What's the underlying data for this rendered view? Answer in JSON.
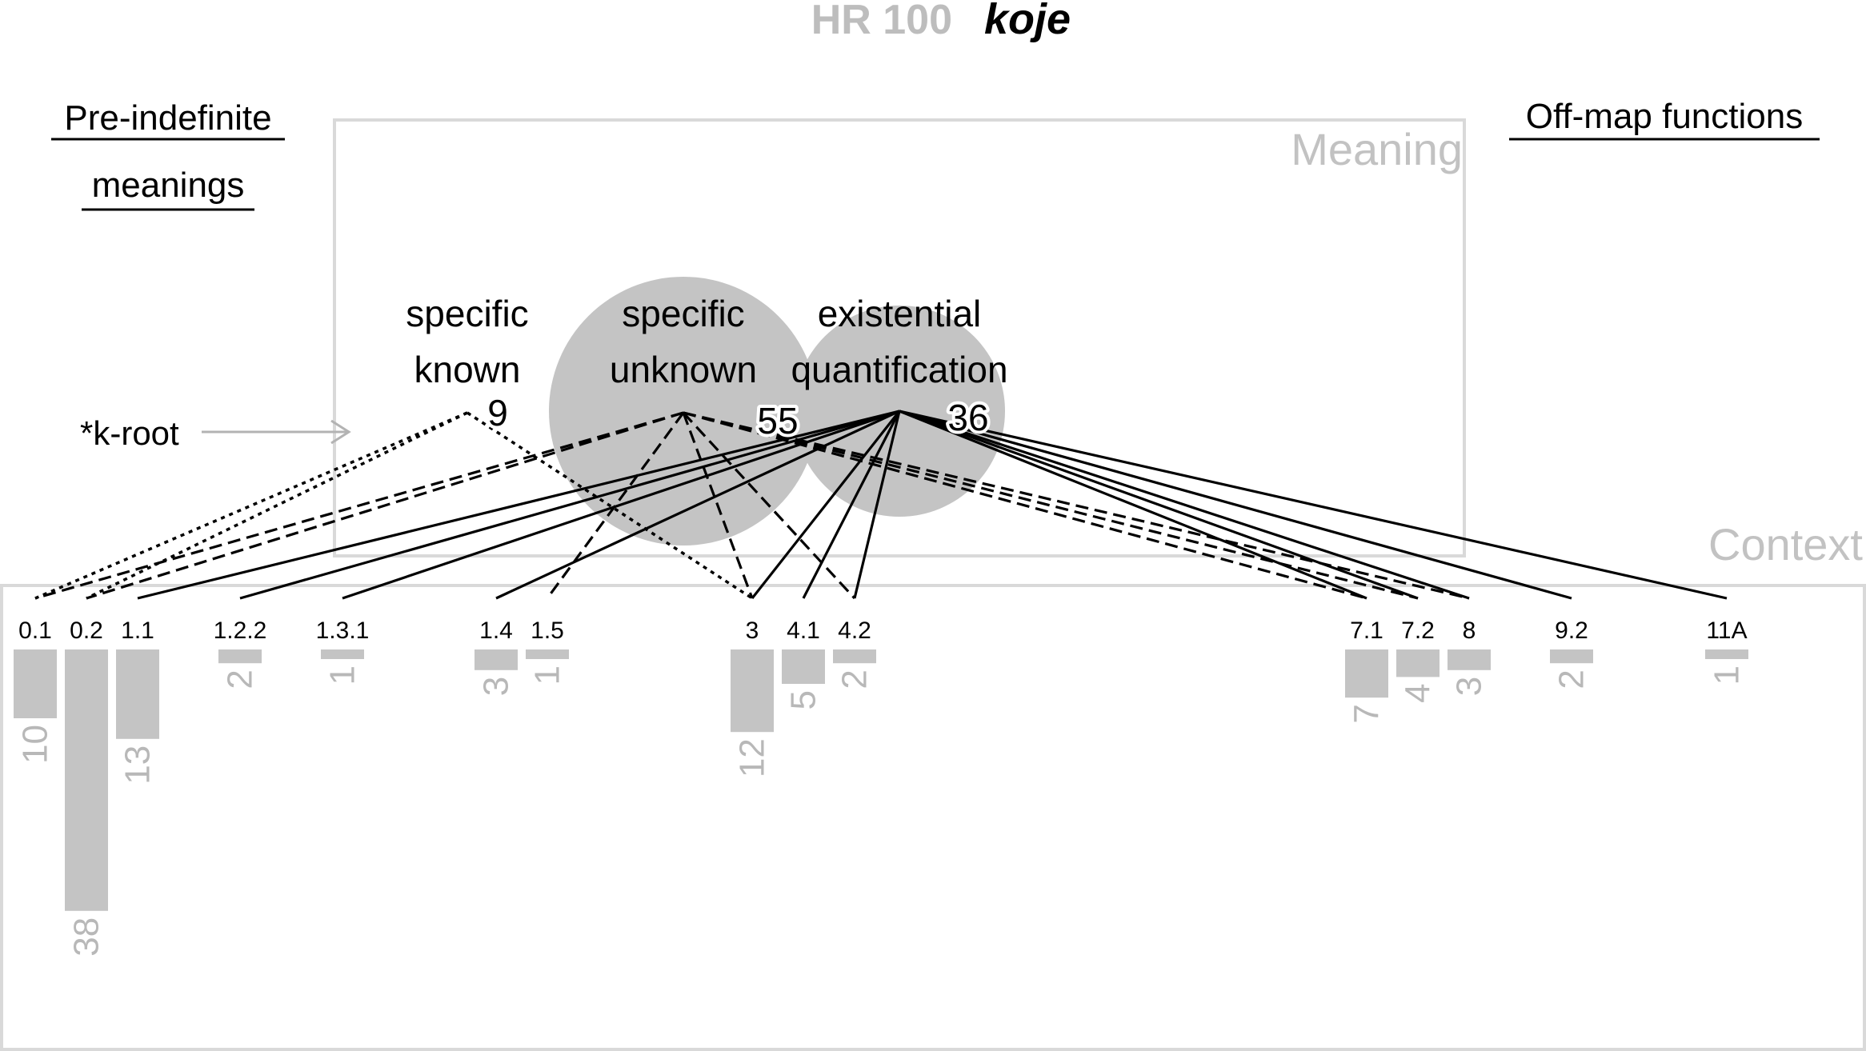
{
  "title": {
    "code": "HR 100",
    "word": "koje"
  },
  "panels": {
    "meaning_label": "Meaning",
    "context_label": "Context"
  },
  "headers": {
    "pre_indefinite": [
      "Pre-indefinite",
      "meanings"
    ],
    "off_map": "Off-map functions"
  },
  "root_marker": {
    "label": "*k-root"
  },
  "meanings": [
    {
      "id": "sk",
      "lines": [
        "specific",
        "known"
      ],
      "count": "9",
      "circle": false
    },
    {
      "id": "su",
      "lines": [
        "specific",
        "unknown"
      ],
      "count": "55",
      "circle": true
    },
    {
      "id": "eq",
      "lines": [
        "existential",
        "quantification"
      ],
      "count": "36",
      "circle": true
    }
  ],
  "contexts": [
    {
      "id": "c01",
      "label": "0.1",
      "count": 10
    },
    {
      "id": "c02",
      "label": "0.2",
      "count": 38
    },
    {
      "id": "c11",
      "label": "1.1",
      "count": 13
    },
    {
      "id": "c122",
      "label": "1.2.2",
      "count": 2
    },
    {
      "id": "c131",
      "label": "1.3.1",
      "count": 1
    },
    {
      "id": "c14",
      "label": "1.4",
      "count": 3
    },
    {
      "id": "c15",
      "label": "1.5",
      "count": 1
    },
    {
      "id": "c3",
      "label": "3",
      "count": 12
    },
    {
      "id": "c41",
      "label": "4.1",
      "count": 5
    },
    {
      "id": "c42",
      "label": "4.2",
      "count": 2
    },
    {
      "id": "c71",
      "label": "7.1",
      "count": 7
    },
    {
      "id": "c72",
      "label": "7.2",
      "count": 4
    },
    {
      "id": "c8",
      "label": "8",
      "count": 3
    },
    {
      "id": "c92",
      "label": "9.2",
      "count": 2
    },
    {
      "id": "c11A",
      "label": "11A",
      "count": 1
    }
  ],
  "links": [
    {
      "from": "sk",
      "to": "c01",
      "style": "dotted"
    },
    {
      "from": "sk",
      "to": "c02",
      "style": "dotted"
    },
    {
      "from": "sk",
      "to": "c3",
      "style": "dotted"
    },
    {
      "from": "su",
      "to": "c01",
      "style": "dashed"
    },
    {
      "from": "su",
      "to": "c02",
      "style": "dashed"
    },
    {
      "from": "su",
      "to": "c15",
      "style": "dashed"
    },
    {
      "from": "su",
      "to": "c3",
      "style": "dashed"
    },
    {
      "from": "su",
      "to": "c42",
      "style": "dashed"
    },
    {
      "from": "su",
      "to": "c71",
      "style": "dashed"
    },
    {
      "from": "su",
      "to": "c72",
      "style": "dashed"
    },
    {
      "from": "su",
      "to": "c8",
      "style": "dashed"
    },
    {
      "from": "eq",
      "to": "c11",
      "style": "solid"
    },
    {
      "from": "eq",
      "to": "c122",
      "style": "solid"
    },
    {
      "from": "eq",
      "to": "c131",
      "style": "solid"
    },
    {
      "from": "eq",
      "to": "c14",
      "style": "solid"
    },
    {
      "from": "eq",
      "to": "c3",
      "style": "solid"
    },
    {
      "from": "eq",
      "to": "c41",
      "style": "solid"
    },
    {
      "from": "eq",
      "to": "c42",
      "style": "solid"
    },
    {
      "from": "eq",
      "to": "c71",
      "style": "solid"
    },
    {
      "from": "eq",
      "to": "c72",
      "style": "solid"
    },
    {
      "from": "eq",
      "to": "c8",
      "style": "solid"
    },
    {
      "from": "eq",
      "to": "c92",
      "style": "solid"
    },
    {
      "from": "eq",
      "to": "c11A",
      "style": "solid"
    }
  ]
}
